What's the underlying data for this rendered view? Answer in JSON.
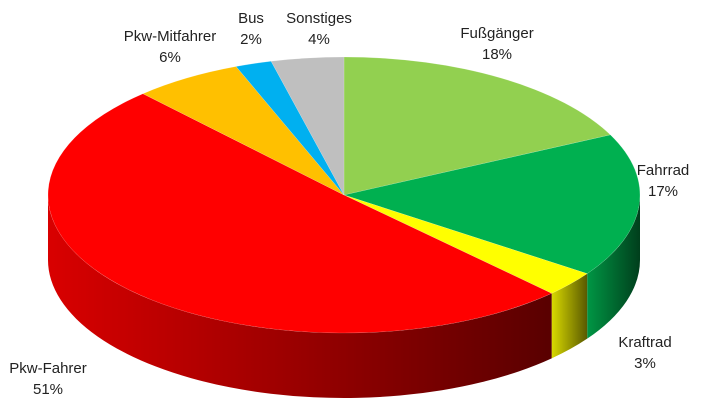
{
  "chart_data": {
    "type": "pie3d",
    "categories": [
      "Fußgänger",
      "Fahrrad",
      "Kraftrad",
      "Pkw-Fahrer",
      "Pkw-Mitfahrer",
      "Bus",
      "Sonstiges"
    ],
    "values": [
      18,
      17,
      3,
      51,
      6,
      2,
      4
    ],
    "value_labels": [
      "18%",
      "17%",
      "3%",
      "51%",
      "6%",
      "2%",
      "4%"
    ],
    "colors": [
      "#92d050",
      "#00b050",
      "#ffff00",
      "#ff0000",
      "#ffc000",
      "#00b0f0",
      "#bfbfbf"
    ]
  }
}
